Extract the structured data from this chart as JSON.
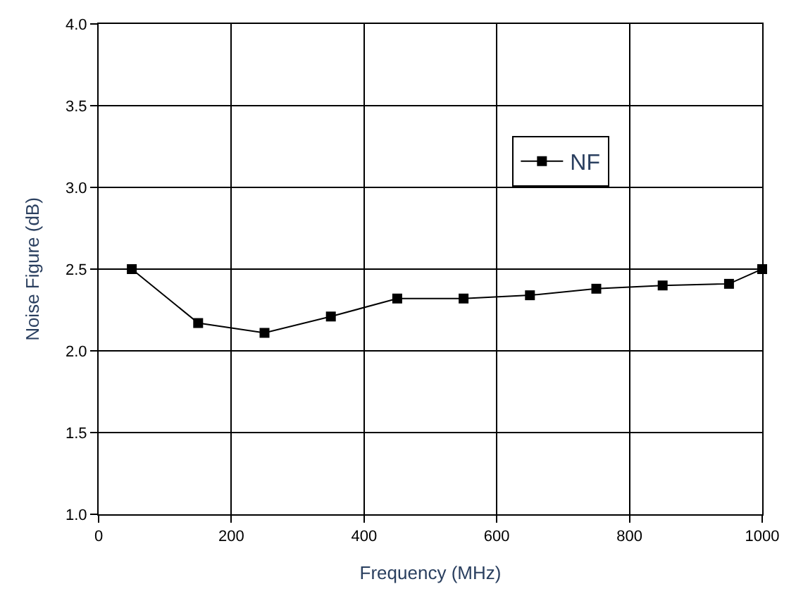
{
  "chart_data": {
    "type": "line",
    "xlabel": "Frequency (MHz)",
    "ylabel": "Noise Figure (dB)",
    "x": [
      50,
      150,
      250,
      350,
      450,
      550,
      650,
      750,
      850,
      950,
      1000
    ],
    "series": [
      {
        "name": "NF",
        "color": "#000000",
        "values": [
          2.5,
          2.17,
          2.11,
          2.21,
          2.32,
          2.32,
          2.34,
          2.38,
          2.4,
          2.41,
          2.5
        ]
      }
    ],
    "xlim": [
      0,
      1000
    ],
    "xticks": [
      0,
      200,
      400,
      600,
      800,
      1000
    ],
    "ylim": [
      1.0,
      4.0
    ],
    "yticks": [
      {
        "value": 1.0,
        "label": "1.0"
      },
      {
        "value": 1.5,
        "label": "1.5"
      },
      {
        "value": 2.0,
        "label": "2.0"
      },
      {
        "value": 2.5,
        "label": "2.5"
      },
      {
        "value": 3.0,
        "label": "3.0"
      },
      {
        "value": 3.5,
        "label": "3.5"
      },
      {
        "value": 4.0,
        "label": "4.0"
      }
    ],
    "grid": true,
    "legend": "top right",
    "marker": "square",
    "line_style": "solid"
  }
}
